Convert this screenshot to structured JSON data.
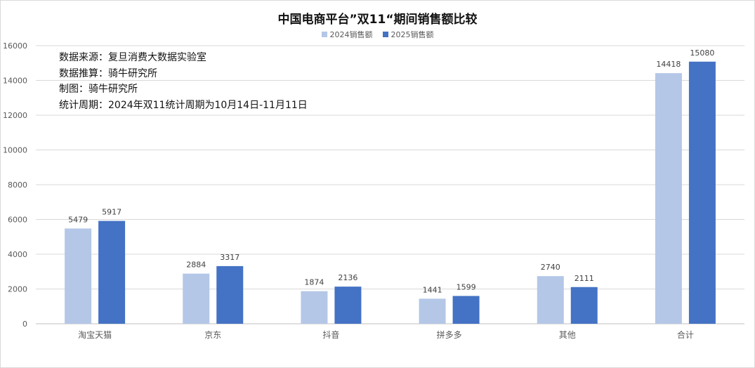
{
  "chart_data": {
    "type": "bar",
    "title": "中国电商平台”双11“期间销售额比较",
    "categories": [
      "淘宝天猫",
      "京东",
      "抖音",
      "拼多多",
      "其他",
      "合计"
    ],
    "series": [
      {
        "name": "2024销售额",
        "color": "#b4c7e7",
        "values": [
          5479,
          2884,
          1874,
          1441,
          2740,
          14418
        ]
      },
      {
        "name": "2025销售额",
        "color": "#4472c4",
        "values": [
          5917,
          3317,
          2136,
          1599,
          2111,
          15080
        ]
      }
    ],
    "ylim": [
      0,
      16000
    ],
    "yticks": [
      0,
      2000,
      4000,
      6000,
      8000,
      10000,
      12000,
      14000,
      16000
    ],
    "grid": true,
    "legend_position": "top",
    "xlabel": "",
    "ylabel": ""
  },
  "notes": [
    "数据来源：复旦消费大数据实验室",
    "数据推算：骑牛研究所",
    "制图：骑牛研究所",
    "统计周期：2024年双11统计周期为10月14日-11月11日"
  ]
}
